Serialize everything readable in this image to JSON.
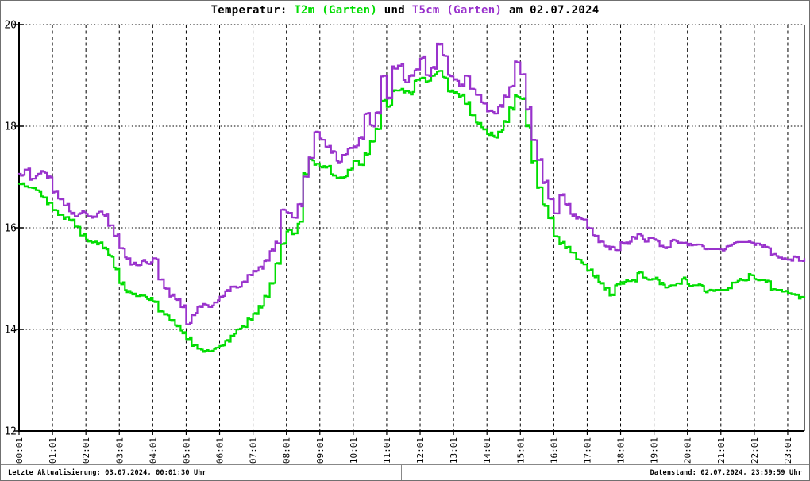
{
  "title": {
    "part1": "Temperatur: ",
    "part2": "T2m (Garten)",
    "part3": " und ",
    "part4": "T5cm (Garten)",
    "part5": " am 02.07.2024"
  },
  "status_bar": {
    "left": "Letzte Aktualisierung: 03.07.2024, 00:01:30 Uhr",
    "right": "Datenstand: 02.07.2024, 23:59:59 Uhr"
  },
  "colors": {
    "t2m": "#00dd00",
    "t5cm": "#9932cc",
    "axis": "#000000",
    "grid": "#000000",
    "statusbar_border": "#888888"
  },
  "chart_data": {
    "type": "line",
    "title": "Temperatur: T2m (Garten) und T5cm (Garten) am 02.07.2024",
    "xlabel": "",
    "ylabel": "",
    "ylim": [
      12,
      20
    ],
    "yticks": [
      12,
      14,
      16,
      18,
      20
    ],
    "ytick_labels": [
      "12",
      "14",
      "16",
      "18",
      "20"
    ],
    "x_tick_labels": [
      "00:01",
      "01:01",
      "02:01",
      "03:01",
      "04:01",
      "05:01",
      "06:01",
      "07:01",
      "08:01",
      "09:01",
      "10:01",
      "11:01",
      "12:01",
      "13:01",
      "14:01",
      "15:01",
      "16:01",
      "17:01",
      "18:01",
      "19:01",
      "20:01",
      "21:01",
      "22:01",
      "23:01"
    ],
    "x_domain_minutes": [
      0,
      1410
    ],
    "grid": true,
    "legend_position": "in-title",
    "series": [
      {
        "name": "T2m (Garten)",
        "color": "#00dd00",
        "start_minute": 0,
        "step_minutes": 10,
        "values": [
          16.85,
          16.8,
          16.77,
          16.72,
          16.6,
          16.47,
          16.33,
          16.25,
          16.2,
          16.15,
          16.0,
          15.87,
          15.75,
          15.72,
          15.7,
          15.6,
          15.45,
          15.2,
          14.9,
          14.75,
          14.7,
          14.68,
          14.65,
          14.6,
          14.55,
          14.35,
          14.28,
          14.18,
          14.08,
          13.95,
          13.82,
          13.7,
          13.62,
          13.58,
          13.58,
          13.62,
          13.7,
          13.78,
          13.9,
          14.0,
          14.05,
          14.2,
          14.3,
          14.45,
          14.65,
          14.9,
          15.3,
          15.7,
          15.95,
          15.9,
          16.1,
          17.05,
          17.35,
          17.25,
          17.2,
          17.2,
          17.05,
          17.0,
          17.0,
          17.15,
          17.3,
          17.25,
          17.45,
          17.72,
          17.95,
          18.5,
          18.4,
          18.7,
          18.72,
          18.68,
          18.65,
          18.9,
          18.95,
          18.88,
          19.0,
          19.1,
          18.95,
          18.7,
          18.65,
          18.6,
          18.45,
          18.2,
          18.05,
          17.95,
          17.85,
          17.8,
          17.9,
          18.1,
          18.35,
          18.6,
          18.55,
          18.0,
          17.3,
          16.8,
          16.45,
          16.2,
          15.85,
          15.7,
          15.62,
          15.5,
          15.38,
          15.3,
          15.18,
          15.05,
          14.92,
          14.8,
          14.68,
          14.88,
          14.92,
          14.95,
          14.97,
          15.1,
          15.0,
          14.97,
          15.0,
          14.9,
          14.85,
          14.87,
          14.88,
          15.0,
          14.87,
          14.87,
          14.87,
          14.75,
          14.78,
          14.78,
          14.78,
          14.8,
          14.9,
          14.98,
          14.98,
          15.08,
          14.97,
          14.97,
          14.95,
          14.78,
          14.78,
          14.76,
          14.7,
          14.68,
          14.62,
          14.62
        ]
      },
      {
        "name": "T5cm (Garten)",
        "color": "#9932cc",
        "start_minute": 0,
        "step_minutes": 10,
        "values": [
          17.05,
          17.15,
          16.95,
          17.05,
          17.1,
          17.0,
          16.7,
          16.55,
          16.45,
          16.3,
          16.25,
          16.3,
          16.25,
          16.2,
          16.3,
          16.25,
          16.05,
          15.85,
          15.6,
          15.4,
          15.3,
          15.27,
          15.35,
          15.3,
          15.38,
          15.0,
          14.8,
          14.67,
          14.6,
          14.45,
          14.12,
          14.3,
          14.45,
          14.5,
          14.45,
          14.55,
          14.65,
          14.75,
          14.82,
          14.85,
          14.95,
          15.05,
          15.15,
          15.22,
          15.35,
          15.55,
          15.7,
          16.35,
          16.3,
          16.2,
          16.45,
          17.0,
          17.38,
          17.9,
          17.75,
          17.6,
          17.5,
          17.3,
          17.45,
          17.55,
          17.6,
          17.78,
          18.25,
          18.0,
          18.25,
          19.0,
          18.55,
          19.15,
          19.2,
          18.88,
          19.0,
          19.1,
          19.35,
          19.0,
          19.15,
          19.6,
          19.4,
          19.0,
          18.9,
          18.8,
          19.0,
          18.72,
          18.6,
          18.45,
          18.3,
          18.27,
          18.4,
          18.6,
          18.8,
          19.25,
          19.0,
          18.35,
          17.75,
          17.35,
          16.9,
          16.55,
          16.3,
          16.65,
          16.45,
          16.25,
          16.2,
          16.15,
          16.0,
          15.85,
          15.72,
          15.65,
          15.6,
          15.55,
          15.7,
          15.7,
          15.8,
          15.85,
          15.75,
          15.8,
          15.75,
          15.62,
          15.6,
          15.75,
          15.72,
          15.72,
          15.68,
          15.65,
          15.65,
          15.58,
          15.58,
          15.58,
          15.58,
          15.62,
          15.7,
          15.72,
          15.72,
          15.72,
          15.68,
          15.65,
          15.6,
          15.48,
          15.42,
          15.38,
          15.38,
          15.42,
          15.35,
          15.4
        ]
      }
    ]
  }
}
